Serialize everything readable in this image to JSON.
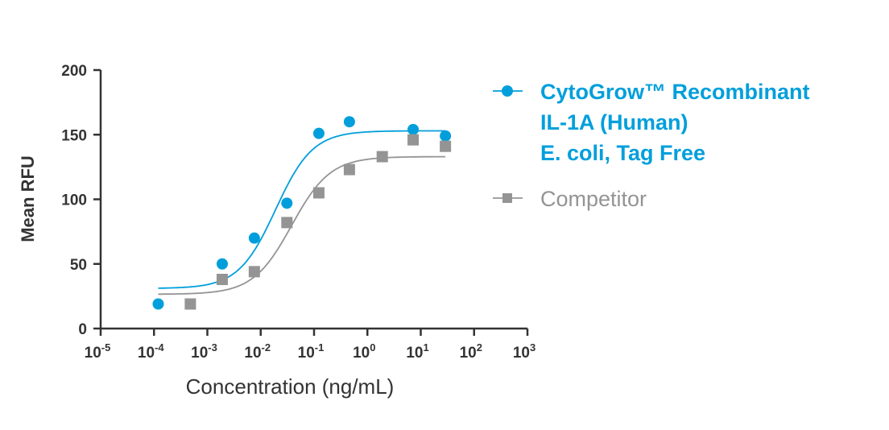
{
  "chart_data": {
    "type": "scatter",
    "title": "",
    "xlabel": "Concentration (ng/mL)",
    "ylabel": "Mean RFU",
    "xscale": "log",
    "xlim": [
      1e-05,
      1000
    ],
    "ylim": [
      0,
      200
    ],
    "xticks": [
      {
        "base": "10",
        "exp": "-5"
      },
      {
        "base": "10",
        "exp": "-4"
      },
      {
        "base": "10",
        "exp": "-3"
      },
      {
        "base": "10",
        "exp": "-2"
      },
      {
        "base": "10",
        "exp": "-1"
      },
      {
        "base": "10",
        "exp": "0"
      },
      {
        "base": "10",
        "exp": "1"
      },
      {
        "base": "10",
        "exp": "2"
      },
      {
        "base": "10",
        "exp": "3"
      }
    ],
    "yticks": [
      "0",
      "50",
      "100",
      "150",
      "200"
    ],
    "grid": false,
    "legend_position": "right",
    "series": [
      {
        "name_lines": [
          "CytoGrow™ Recombinant",
          "IL-1A (Human)",
          "E. coli, Tag Free"
        ],
        "marker": "circle",
        "color": "#009fdb",
        "x": [
          0.00012,
          0.0019,
          0.0076,
          0.031,
          0.123,
          0.46,
          7.2,
          29
        ],
        "y": [
          19,
          50,
          70,
          97,
          151,
          160,
          154,
          149
        ],
        "fit": {
          "model": "4PL",
          "bottom": 31,
          "top": 153,
          "ec50": 0.019,
          "hill": 1.25,
          "x_range": [
            0.00012,
            29
          ]
        }
      },
      {
        "name_lines": [
          "Competitor"
        ],
        "marker": "square",
        "color": "#949494",
        "x": [
          0.00048,
          0.0019,
          0.0076,
          0.031,
          0.123,
          0.46,
          1.9,
          7.2,
          29
        ],
        "y": [
          19,
          38,
          44,
          82,
          105,
          123,
          133,
          146,
          141
        ],
        "fit": {
          "model": "4PL",
          "bottom": 26.5,
          "top": 133,
          "ec50": 0.038,
          "hill": 1.2,
          "x_range": [
            0.00012,
            29
          ]
        }
      }
    ]
  }
}
